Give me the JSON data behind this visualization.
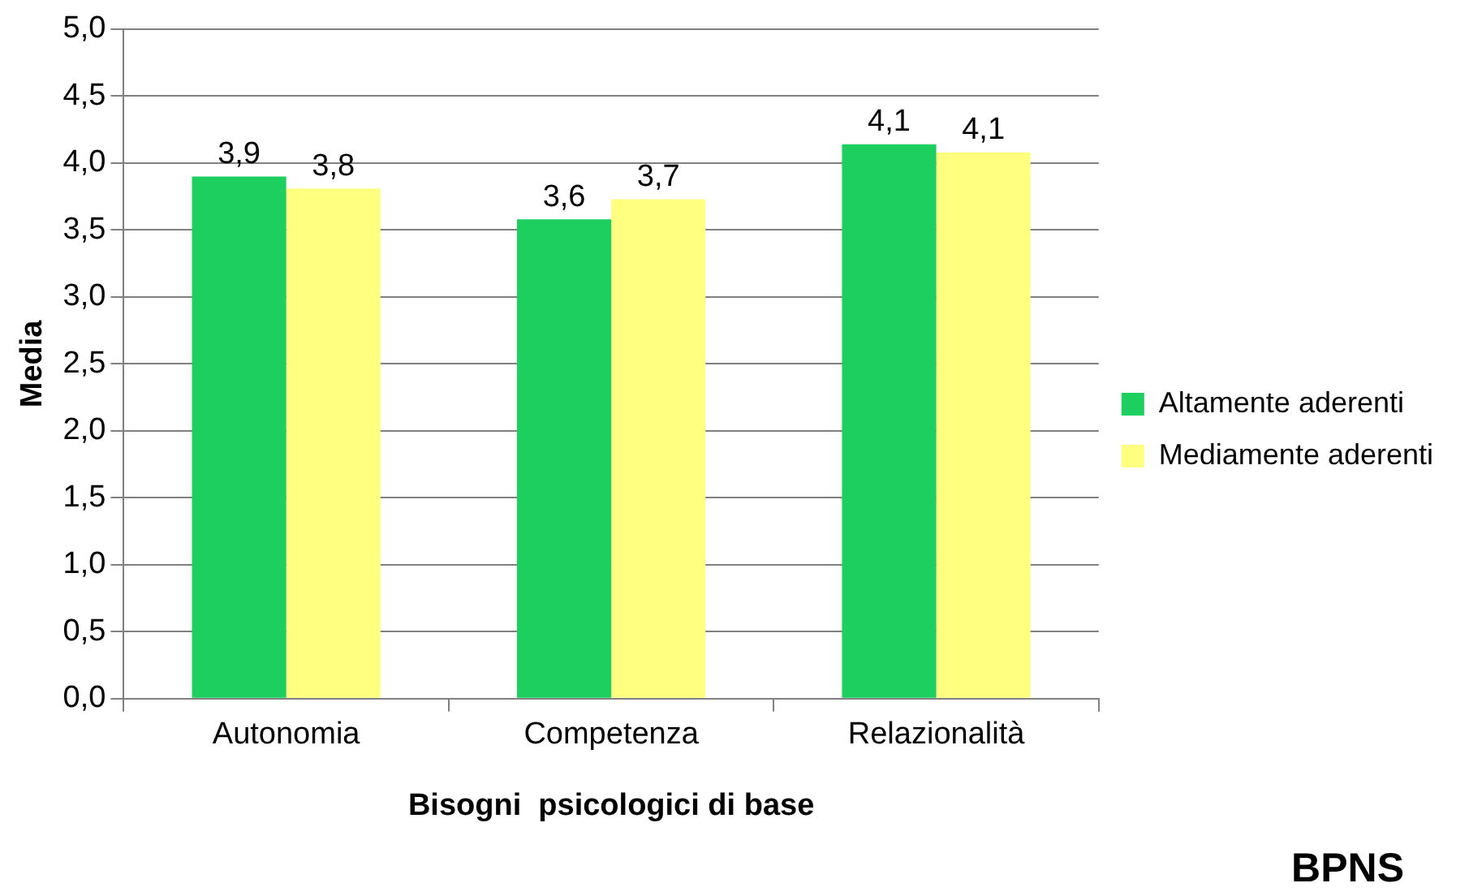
{
  "chart_data": {
    "type": "bar",
    "title": "BPNS",
    "xlabel": "Bisogni  psicologici di base",
    "ylabel": "Media",
    "categories": [
      "Autonomia",
      "Competenza",
      "Relazionalità"
    ],
    "series": [
      {
        "name": "Altamente aderenti",
        "color": "#1ccf5e",
        "values": [
          3.9,
          3.58,
          4.14
        ],
        "value_labels": [
          "3,9",
          "3,6",
          "4,1"
        ]
      },
      {
        "name": "Mediamente aderenti",
        "color": "#ffff80",
        "values": [
          3.81,
          3.73,
          4.08
        ],
        "value_labels": [
          "3,8",
          "3,7",
          "4,1"
        ]
      }
    ],
    "ylim": [
      0,
      5
    ],
    "yticks": [
      {
        "value": 0,
        "label": "0,0"
      },
      {
        "value": 0.5,
        "label": "0,5"
      },
      {
        "value": 1,
        "label": "1,0"
      },
      {
        "value": 1.5,
        "label": "1,5"
      },
      {
        "value": 2,
        "label": "2,0"
      },
      {
        "value": 2.5,
        "label": "2,5"
      },
      {
        "value": 3,
        "label": "3,0"
      },
      {
        "value": 3.5,
        "label": "3,5"
      },
      {
        "value": 4,
        "label": "4,0"
      },
      {
        "value": 4.5,
        "label": "4,5"
      },
      {
        "value": 5,
        "label": "5,0"
      }
    ],
    "grid": "y",
    "legend": "right"
  }
}
